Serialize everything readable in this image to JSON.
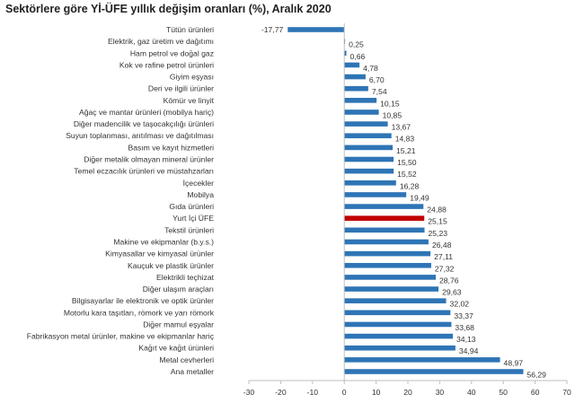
{
  "chart_data": {
    "type": "bar",
    "orientation": "horizontal",
    "title": "Sektörlere göre Yİ-ÜFE yıllık değişim oranları (%), Aralık 2020",
    "xlabel": "",
    "ylabel": "",
    "xlim": [
      -30,
      70
    ],
    "xticks": [
      "-30",
      "-20",
      "-10",
      "0",
      "10",
      "20",
      "30",
      "40",
      "50",
      "60",
      "70"
    ],
    "grid": false,
    "legend": "none",
    "colors": {
      "bar": "#2e75b6",
      "highlight": "#c00000"
    },
    "highlight_category": "Yurt İçi ÜFE",
    "categories": [
      "Tütün ürünleri",
      "Elektrik, gaz üretim ve dağıtımı",
      "Ham petrol ve doğal gaz",
      "Kok ve rafine petrol ürünleri",
      "Giyim eşyası",
      "Deri ve ilgili ürünler",
      "Kömür ve linyit",
      "Ağaç ve mantar ürünleri (mobilya hariç)",
      "Diğer madencilik ve taşocakçılığı ürünleri",
      "Suyun toplanması, arıtılması ve dağıtılması",
      "Basım ve kayıt hizmetleri",
      "Diğer metalik olmayan mineral ürünler",
      "Temel eczacılık ürünleri ve müstahzarları",
      "İçecekler",
      "Mobilya",
      "Gıda ürünleri",
      "Yurt İçi ÜFE",
      "Tekstil ürünleri",
      "Makine ve ekipmanlar (b.y.s.)",
      "Kimyasallar ve kimyasal ürünler",
      "Kauçuk ve plastik ürünler",
      "Elektrikli teçhizat",
      "Diğer ulaşım araçları",
      "Bilgisayarlar ile elektronik ve optik ürünler",
      "Motorlu kara taşıtları, römork ve yarı römork",
      "Diğer mamul eşyalar",
      "Fabrikasyon metal ürünler, makine ve ekipmanlar hariç",
      "Kağıt ve kağıt ürünleri",
      "Metal cevherleri",
      "Ana metaller"
    ],
    "values": [
      -17.77,
      0.25,
      0.66,
      4.78,
      6.7,
      7.54,
      10.15,
      10.85,
      13.67,
      14.83,
      15.21,
      15.5,
      15.52,
      16.28,
      19.49,
      24.88,
      25.15,
      25.23,
      26.48,
      27.11,
      27.32,
      28.76,
      29.63,
      32.02,
      33.37,
      33.68,
      34.13,
      34.94,
      48.97,
      56.29
    ],
    "value_labels": [
      "-17,77",
      "0,25",
      "0,66",
      "4,78",
      "6,70",
      "7,54",
      "10,15",
      "10,85",
      "13,67",
      "14,83",
      "15,21",
      "15,50",
      "15,52",
      "16,28",
      "19,49",
      "24,88",
      "25,15",
      "25,23",
      "26,48",
      "27,11",
      "27,32",
      "28,76",
      "29,63",
      "32,02",
      "33,37",
      "33,68",
      "34,13",
      "34,94",
      "48,97",
      "56,29"
    ]
  }
}
